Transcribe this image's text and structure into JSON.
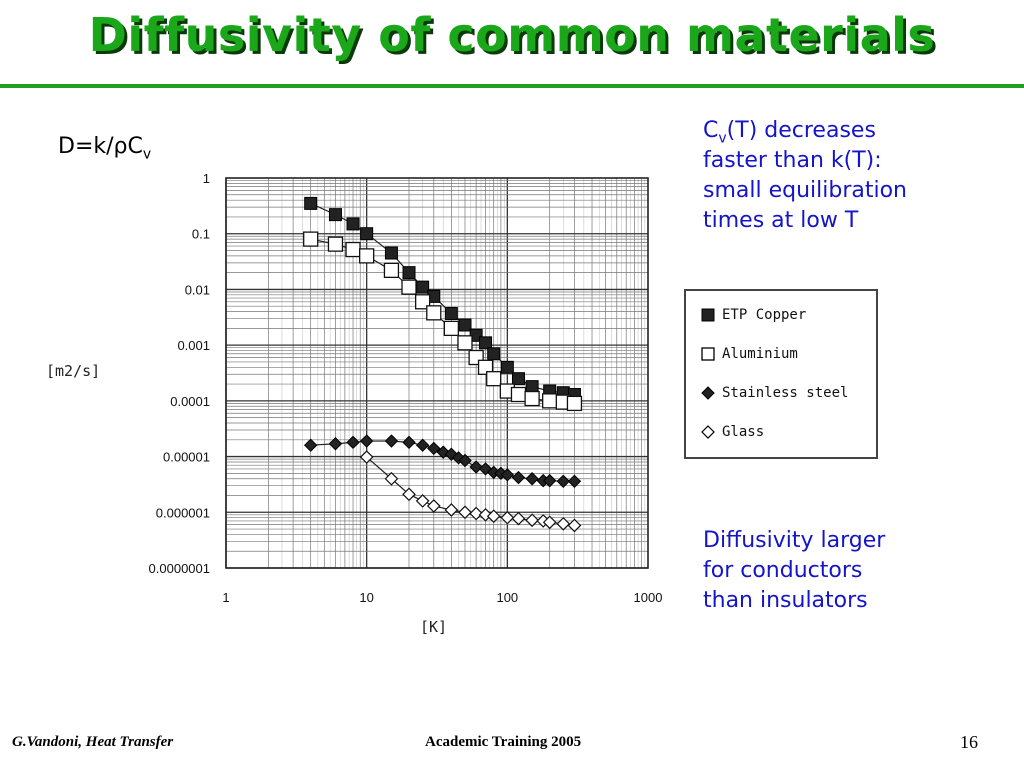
{
  "title": "Diffusivity of common materials",
  "formula": {
    "main": "D=k/",
    "rho": "ρ",
    "c": "C",
    "sub": "v"
  },
  "note_top": {
    "c": "C",
    "sub": "v",
    "line1_rest": "(T) decreases",
    "line2": "faster than k(T):",
    "line3": "small equilibration",
    "line4": "times at low T"
  },
  "note_bottom": {
    "line1": "Diffusivity larger",
    "line2": "for conductors",
    "line3": "than insulators"
  },
  "footer": {
    "left": "G.Vandoni, Heat Transfer",
    "center": "Academic Training 2005",
    "page": "16"
  },
  "colors": {
    "title": "#1aa81a",
    "rule": "#1f9f1f",
    "note": "#1414c8"
  },
  "chart_data": {
    "type": "scatter",
    "xscale": "log",
    "yscale": "log",
    "xlim": [
      1,
      1000
    ],
    "ylim": [
      1e-07,
      1
    ],
    "xlabel": "[K]",
    "ylabel": "[m2/s]",
    "x_ticks": [
      "1",
      "10",
      "100",
      "1000"
    ],
    "y_ticks": [
      "1",
      "0.1",
      "0.01",
      "0.001",
      "0.0001",
      "0.00001",
      "0.000001",
      "0.0000001"
    ],
    "grid": true,
    "legend_position": "right",
    "series": [
      {
        "name": "ETP Copper",
        "marker": "filled-square",
        "x": [
          4,
          6,
          8,
          10,
          15,
          20,
          25,
          30,
          40,
          50,
          60,
          70,
          80,
          100,
          120,
          150,
          200,
          250,
          300
        ],
        "y": [
          0.35,
          0.22,
          0.15,
          0.1,
          0.045,
          0.02,
          0.011,
          0.0075,
          0.0037,
          0.0023,
          0.0015,
          0.0011,
          0.0007,
          0.0004,
          0.00025,
          0.00018,
          0.00015,
          0.00014,
          0.00013
        ]
      },
      {
        "name": "Aluminium",
        "marker": "open-square",
        "x": [
          4,
          6,
          8,
          10,
          15,
          20,
          25,
          30,
          40,
          50,
          60,
          70,
          80,
          100,
          120,
          150,
          200,
          250,
          300
        ],
        "y": [
          0.08,
          0.065,
          0.052,
          0.04,
          0.022,
          0.011,
          0.006,
          0.0038,
          0.002,
          0.0011,
          0.0006,
          0.0004,
          0.00025,
          0.00015,
          0.00013,
          0.00011,
          0.0001,
          9.5e-05,
          9e-05
        ]
      },
      {
        "name": "Stainless steel",
        "marker": "filled-diamond",
        "x": [
          4,
          6,
          8,
          10,
          15,
          20,
          25,
          30,
          35,
          40,
          45,
          50,
          60,
          70,
          80,
          90,
          100,
          120,
          150,
          180,
          200,
          250,
          300
        ],
        "y": [
          1.6e-05,
          1.7e-05,
          1.8e-05,
          1.9e-05,
          1.9e-05,
          1.8e-05,
          1.6e-05,
          1.4e-05,
          1.2e-05,
          1.1e-05,
          9.5e-06,
          8.5e-06,
          6.5e-06,
          6e-06,
          5.2e-06,
          5e-06,
          4.7e-06,
          4.2e-06,
          4e-06,
          3.7e-06,
          3.7e-06,
          3.6e-06,
          3.6e-06
        ]
      },
      {
        "name": "Glass",
        "marker": "open-diamond",
        "x": [
          10,
          15,
          20,
          25,
          30,
          40,
          50,
          60,
          70,
          80,
          100,
          120,
          150,
          180,
          200,
          250,
          300
        ],
        "y": [
          9.8e-06,
          4e-06,
          2.1e-06,
          1.6e-06,
          1.3e-06,
          1.1e-06,
          1e-06,
          9.5e-07,
          9e-07,
          8.5e-07,
          8e-07,
          7.7e-07,
          7.2e-07,
          7e-07,
          6.6e-07,
          6.2e-07,
          5.8e-07
        ]
      }
    ]
  }
}
